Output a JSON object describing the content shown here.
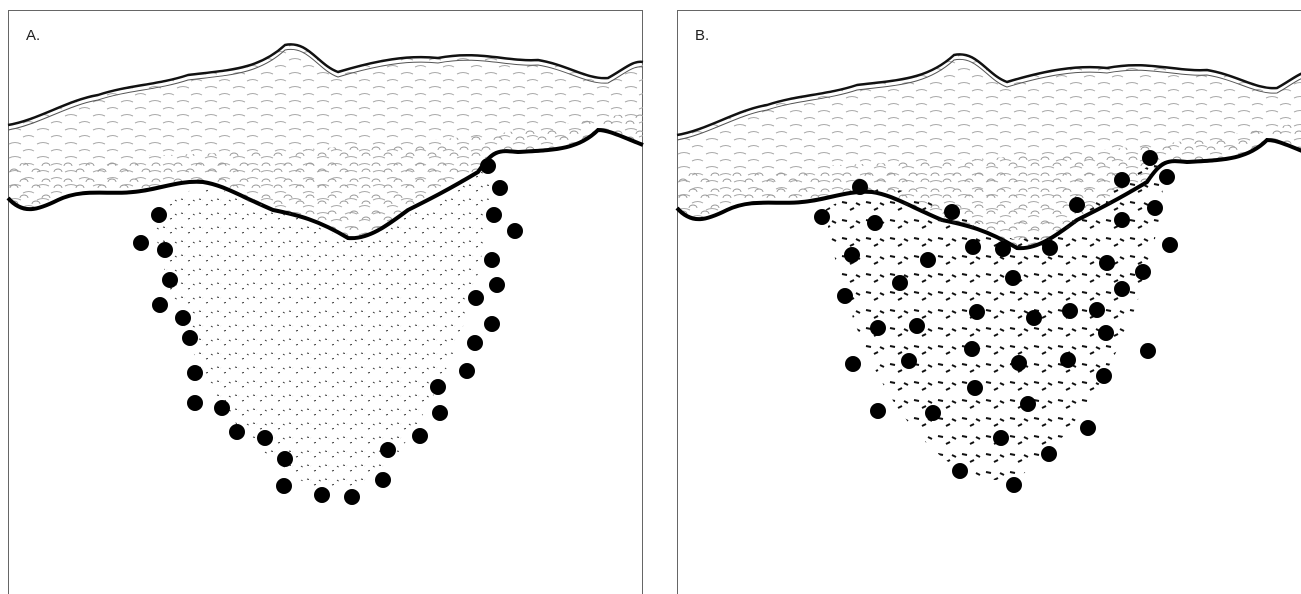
{
  "panels": [
    {
      "label": "A."
    },
    {
      "label": "B."
    }
  ]
}
